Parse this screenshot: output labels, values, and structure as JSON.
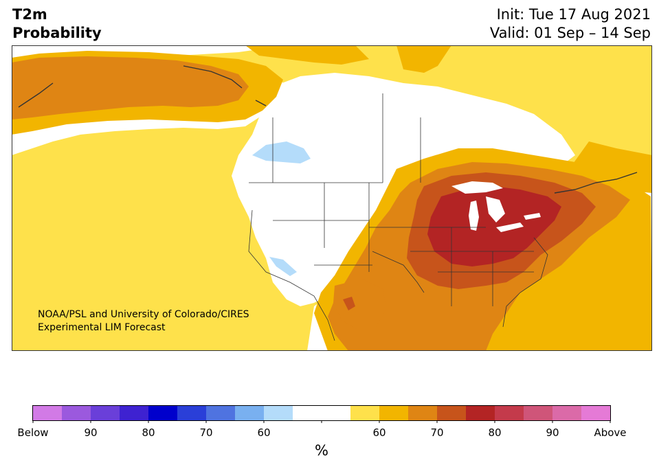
{
  "title": {
    "left_line1": "T2m",
    "left_line2": "Probability",
    "right_line1": "Init: Tue 17 Aug 2021",
    "right_line2": "Valid: 01 Sep – 14 Sep"
  },
  "credit": {
    "line1": "NOAA/PSL and University of Colorado/CIRES",
    "line2": "Experimental LIM Forecast"
  },
  "colorbar": {
    "unit_label": "%",
    "colors": [
      "#d27ae6",
      "#9b59de",
      "#6a3fd9",
      "#3e22d1",
      "#0000cc",
      "#2a3fd8",
      "#4f73e0",
      "#79b0f0",
      "#b4dcfa",
      "#ffffff",
      "#ffffff",
      "#fee14b",
      "#f2b500",
      "#df8514",
      "#c7541b",
      "#b32424",
      "#c43a4b",
      "#cf5579",
      "#db6aa8",
      "#e57ad6"
    ],
    "labels": [
      "Below",
      "90",
      "80",
      "70",
      "60",
      "60",
      "70",
      "80",
      "90",
      "Above"
    ]
  },
  "map_colors": {
    "white": "#ffffff",
    "yellow": "#fee14b",
    "gold": "#f2b500",
    "orange": "#df8514",
    "dark_orange": "#c7541b",
    "red": "#b32424",
    "light_blue": "#b4dcfa",
    "boundary": "#333333"
  }
}
